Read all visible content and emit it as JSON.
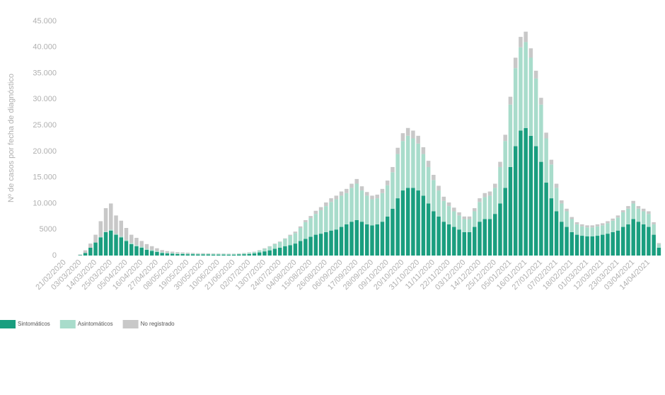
{
  "chart_data": {
    "type": "stacked-bar",
    "y_label": "Nº de casos por fecha de diagnóstico",
    "categories": [
      "21/02/2020",
      null,
      null,
      "03/03/2020",
      null,
      null,
      "14/03/2020",
      null,
      null,
      "25/03/2020",
      null,
      null,
      "05/04/2020",
      null,
      null,
      "16/04/2020",
      null,
      null,
      "27/04/2020",
      null,
      null,
      "08/05/2020",
      null,
      null,
      "19/05/2020",
      null,
      null,
      "30/05/2020",
      null,
      null,
      "10/06/2020",
      null,
      null,
      "21/06/2020",
      null,
      null,
      "02/07/2020",
      null,
      null,
      "13/07/2020",
      null,
      null,
      "24/07/2020",
      null,
      null,
      "04/08/2020",
      null,
      null,
      "15/08/2020",
      null,
      null,
      "26/08/2020",
      null,
      null,
      "06/09/2020",
      null,
      null,
      "17/09/2020",
      null,
      null,
      "28/09/2020",
      null,
      null,
      "09/10/2020",
      null,
      null,
      "20/10/2020",
      null,
      null,
      "31/10/2020",
      null,
      null,
      "11/11/2020",
      null,
      null,
      "22/11/2020",
      null,
      null,
      "03/12/2020",
      null,
      null,
      "14/12/2020",
      null,
      null,
      "25/12/2020",
      null,
      null,
      "05/01/2021",
      null,
      null,
      "16/01/2021",
      null,
      null,
      "27/01/2021",
      null,
      null,
      "07/02/2021",
      null,
      null,
      "18/02/2021",
      null,
      null,
      "01/03/2021",
      null,
      null,
      "12/03/2021",
      null,
      null,
      "23/03/2021",
      null,
      null,
      "03/04/2021",
      null,
      null,
      "14/04/2021",
      null,
      null
    ],
    "series": [
      {
        "name": "Sintomáticos",
        "color": "#1a9e7f",
        "values": [
          0,
          0,
          0,
          100,
          500,
          1500,
          2500,
          3500,
          4500,
          4800,
          4000,
          3500,
          2800,
          2200,
          1800,
          1500,
          1100,
          900,
          700,
          500,
          400,
          350,
          300,
          300,
          250,
          250,
          200,
          200,
          200,
          180,
          180,
          180,
          170,
          170,
          200,
          250,
          300,
          400,
          600,
          800,
          1000,
          1300,
          1500,
          1800,
          2000,
          2300,
          2800,
          3200,
          3600,
          4000,
          4200,
          4500,
          4800,
          5000,
          5500,
          6000,
          6500,
          6800,
          6500,
          6000,
          5800,
          6000,
          6500,
          7500,
          9000,
          11000,
          12500,
          13000,
          13000,
          12500,
          11500,
          10000,
          8500,
          7500,
          6500,
          6000,
          5500,
          5000,
          4500,
          4500,
          5500,
          6500,
          7000,
          7000,
          8000,
          10000,
          13000,
          17000,
          21000,
          24000,
          24500,
          23000,
          21000,
          18000,
          14000,
          11000,
          8500,
          6500,
          5500,
          4500,
          4000,
          3800,
          3700,
          3700,
          3800,
          4000,
          4200,
          4500,
          4800,
          5500,
          6000,
          7000,
          6500,
          6000,
          5500,
          4000,
          1500
        ]
      },
      {
        "name": "Asintomáticos",
        "color": "#a8dccb",
        "values": [
          0,
          0,
          0,
          0,
          0,
          0,
          0,
          100,
          100,
          200,
          200,
          200,
          200,
          200,
          200,
          200,
          200,
          200,
          200,
          150,
          150,
          150,
          150,
          150,
          150,
          150,
          150,
          150,
          150,
          150,
          150,
          150,
          150,
          150,
          150,
          200,
          250,
          300,
          400,
          500,
          700,
          900,
          1100,
          1400,
          1800,
          2000,
          2500,
          3200,
          3600,
          4000,
          4500,
          5000,
          5500,
          5800,
          6000,
          6000,
          6500,
          7000,
          6000,
          5500,
          5000,
          5000,
          5500,
          6000,
          7000,
          8500,
          9500,
          10000,
          9500,
          9000,
          8000,
          7000,
          6000,
          5000,
          4000,
          3500,
          3000,
          2700,
          2500,
          2500,
          3000,
          3800,
          4200,
          4500,
          5000,
          7000,
          9000,
          12000,
          15000,
          16000,
          16500,
          15000,
          13000,
          11000,
          8500,
          6500,
          4500,
          3500,
          3000,
          2500,
          2000,
          1800,
          1700,
          1700,
          1800,
          1800,
          2000,
          2200,
          2500,
          2800,
          3000,
          3000,
          2500,
          2500,
          2500,
          2000,
          700
        ]
      },
      {
        "name": "No registrado",
        "color": "#c8c8c8",
        "values": [
          0,
          0,
          0,
          100,
          500,
          800,
          1500,
          3000,
          4500,
          5000,
          3500,
          3000,
          2300,
          1600,
          1400,
          1100,
          900,
          700,
          500,
          400,
          300,
          250,
          200,
          150,
          150,
          100,
          100,
          100,
          80,
          70,
          60,
          50,
          50,
          50,
          50,
          50,
          50,
          50,
          50,
          100,
          100,
          100,
          100,
          100,
          200,
          300,
          300,
          400,
          400,
          600,
          600,
          700,
          700,
          700,
          800,
          800,
          800,
          900,
          800,
          700,
          700,
          700,
          800,
          900,
          1000,
          1200,
          1500,
          1500,
          1500,
          1500,
          1300,
          1200,
          1000,
          900,
          800,
          700,
          700,
          600,
          500,
          500,
          600,
          700,
          800,
          800,
          800,
          1000,
          1200,
          1500,
          2000,
          2000,
          2000,
          1800,
          1500,
          1300,
          1100,
          900,
          800,
          600,
          500,
          400,
          400,
          400,
          400,
          400,
          400,
          400,
          400,
          400,
          400,
          400,
          500,
          500,
          500,
          500,
          500,
          400,
          200
        ]
      }
    ],
    "ylim": [
      0,
      45000
    ],
    "yticks": [
      0,
      5000,
      {
        "value": 10000,
        "label": "10.000"
      },
      {
        "value": 15000,
        "label": "15.000"
      },
      {
        "value": 20000,
        "label": "20.000"
      },
      {
        "value": 25000,
        "label": "25.000"
      },
      {
        "value": 30000,
        "label": "30.000"
      },
      {
        "value": 35000,
        "label": "35.000"
      },
      {
        "value": 40000,
        "label": "40.000"
      },
      {
        "value": 45000,
        "label": "45.000"
      }
    ],
    "grid": false,
    "legend": "bottom-left"
  }
}
